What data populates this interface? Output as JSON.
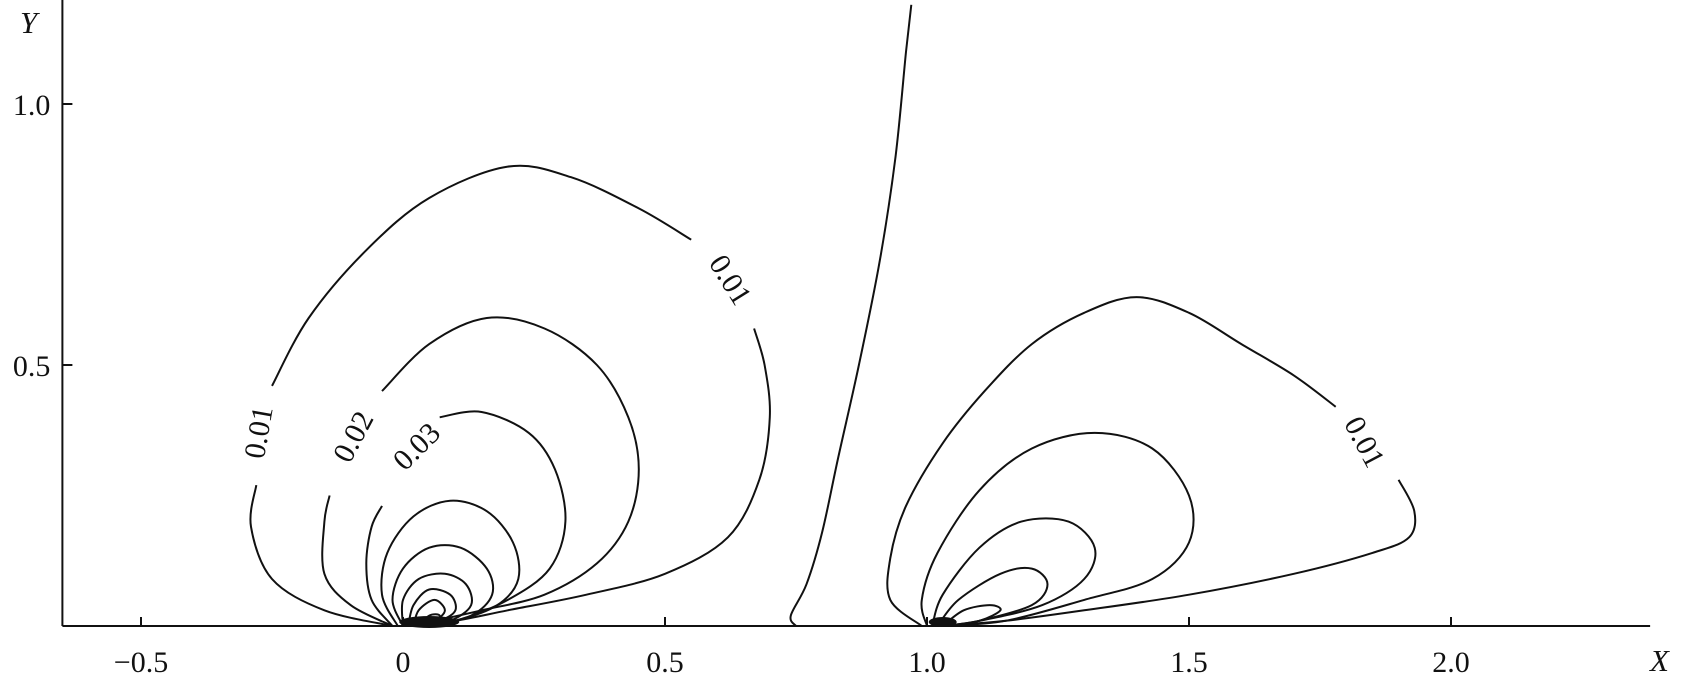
{
  "chart_data": {
    "type": "contour",
    "title": "",
    "xlabel": "X",
    "ylabel": "Y",
    "xlim": [
      -0.65,
      2.38
    ],
    "ylim": [
      0,
      1.2
    ],
    "x_ticks": [
      {
        "value": -0.5,
        "label": "−0.5"
      },
      {
        "value": 0,
        "label": "0"
      },
      {
        "value": 0.5,
        "label": "0.5"
      },
      {
        "value": 1.0,
        "label": "1.0"
      },
      {
        "value": 1.5,
        "label": "1.5"
      },
      {
        "value": 2.0,
        "label": "2.0"
      }
    ],
    "y_ticks": [
      {
        "value": 0.5,
        "label": "0.5"
      },
      {
        "value": 1.0,
        "label": "1.0"
      }
    ],
    "line_color": "#111111",
    "contour_labels": [
      {
        "text": "0.01",
        "x": 0.62,
        "y": 0.66,
        "angle": 58
      },
      {
        "text": "0.01",
        "x": -0.27,
        "y": 0.37,
        "angle": -80
      },
      {
        "text": "0.02",
        "x": -0.09,
        "y": 0.36,
        "angle": -62
      },
      {
        "text": "0.03",
        "x": 0.03,
        "y": 0.34,
        "angle": -45
      },
      {
        "text": "0.01",
        "x": 1.83,
        "y": 0.35,
        "angle": 62
      }
    ],
    "contours": [
      {
        "group": "left",
        "level": 0.01,
        "points": [
          [
            -0.02,
            0.0
          ],
          [
            -0.15,
            0.03
          ],
          [
            -0.25,
            0.09
          ],
          [
            -0.29,
            0.19
          ],
          [
            -0.28,
            0.27
          ]
        ]
      },
      {
        "group": "left",
        "level": 0.01,
        "points": [
          [
            -0.25,
            0.46
          ],
          [
            -0.18,
            0.59
          ],
          [
            -0.07,
            0.72
          ],
          [
            0.05,
            0.82
          ],
          [
            0.2,
            0.88
          ],
          [
            0.32,
            0.86
          ],
          [
            0.45,
            0.8
          ],
          [
            0.55,
            0.74
          ]
        ]
      },
      {
        "group": "left",
        "level": 0.01,
        "points": [
          [
            0.67,
            0.57
          ],
          [
            0.69,
            0.5
          ],
          [
            0.7,
            0.4
          ],
          [
            0.68,
            0.28
          ],
          [
            0.62,
            0.17
          ],
          [
            0.5,
            0.1
          ],
          [
            0.35,
            0.06
          ],
          [
            0.2,
            0.03
          ],
          [
            0.1,
            0.01
          ],
          [
            0.02,
            0.0
          ]
        ]
      },
      {
        "group": "left",
        "level": 0.02,
        "points": [
          [
            -0.02,
            0.0
          ],
          [
            -0.1,
            0.04
          ],
          [
            -0.15,
            0.1
          ],
          [
            -0.15,
            0.2
          ],
          [
            -0.14,
            0.25
          ]
        ]
      },
      {
        "group": "left",
        "level": 0.02,
        "points": [
          [
            -0.04,
            0.45
          ],
          [
            0.05,
            0.54
          ],
          [
            0.16,
            0.59
          ],
          [
            0.27,
            0.57
          ],
          [
            0.37,
            0.5
          ],
          [
            0.43,
            0.4
          ],
          [
            0.45,
            0.3
          ],
          [
            0.43,
            0.2
          ],
          [
            0.37,
            0.12
          ],
          [
            0.27,
            0.06
          ],
          [
            0.15,
            0.03
          ],
          [
            0.06,
            0.01
          ],
          [
            0.01,
            0.0
          ]
        ]
      },
      {
        "group": "left",
        "level": 0.03,
        "points": [
          [
            -0.02,
            0.0
          ],
          [
            -0.06,
            0.05
          ],
          [
            -0.07,
            0.12
          ],
          [
            -0.06,
            0.19
          ],
          [
            -0.04,
            0.23
          ]
        ]
      },
      {
        "group": "left",
        "level": 0.03,
        "points": [
          [
            0.07,
            0.4
          ],
          [
            0.15,
            0.41
          ],
          [
            0.24,
            0.37
          ],
          [
            0.29,
            0.3
          ],
          [
            0.31,
            0.2
          ],
          [
            0.28,
            0.11
          ],
          [
            0.2,
            0.05
          ],
          [
            0.1,
            0.01
          ],
          [
            0.02,
            0.0
          ]
        ]
      },
      {
        "group": "left",
        "level": 0.04,
        "points": [
          [
            -0.01,
            0.0
          ],
          [
            -0.04,
            0.06
          ],
          [
            -0.03,
            0.14
          ],
          [
            0.02,
            0.21
          ],
          [
            0.09,
            0.24
          ],
          [
            0.16,
            0.22
          ],
          [
            0.21,
            0.16
          ],
          [
            0.22,
            0.09
          ],
          [
            0.18,
            0.04
          ],
          [
            0.1,
            0.01
          ],
          [
            0.02,
            0.0
          ]
        ]
      },
      {
        "group": "left",
        "level": 0.05,
        "points": [
          [
            0.0,
            0.0
          ],
          [
            -0.02,
            0.05
          ],
          [
            0.0,
            0.11
          ],
          [
            0.05,
            0.15
          ],
          [
            0.11,
            0.15
          ],
          [
            0.16,
            0.11
          ],
          [
            0.17,
            0.06
          ],
          [
            0.13,
            0.02
          ],
          [
            0.05,
            0.0
          ]
        ]
      },
      {
        "group": "left",
        "level": 0.06,
        "points": [
          [
            0.0,
            0.0
          ],
          [
            0.0,
            0.05
          ],
          [
            0.03,
            0.09
          ],
          [
            0.08,
            0.1
          ],
          [
            0.12,
            0.08
          ],
          [
            0.13,
            0.04
          ],
          [
            0.09,
            0.01
          ],
          [
            0.03,
            0.0
          ]
        ]
      },
      {
        "group": "left",
        "level": 0.07,
        "points": [
          [
            0.01,
            0.0
          ],
          [
            0.02,
            0.04
          ],
          [
            0.05,
            0.07
          ],
          [
            0.09,
            0.06
          ],
          [
            0.1,
            0.03
          ],
          [
            0.07,
            0.01
          ],
          [
            0.02,
            0.0
          ]
        ]
      },
      {
        "group": "left",
        "level": 0.08,
        "points": [
          [
            0.02,
            0.0
          ],
          [
            0.03,
            0.03
          ],
          [
            0.06,
            0.05
          ],
          [
            0.08,
            0.03
          ],
          [
            0.06,
            0.01
          ],
          [
            0.02,
            0.0
          ]
        ]
      },
      {
        "group": "left",
        "level": 0.09,
        "points": [
          [
            0.03,
            0.0
          ],
          [
            0.05,
            0.02
          ],
          [
            0.07,
            0.02
          ],
          [
            0.06,
            0.0
          ]
        ]
      },
      {
        "group": "separator",
        "level": null,
        "points": [
          [
            0.75,
            0.0
          ],
          [
            0.74,
            0.02
          ],
          [
            0.77,
            0.08
          ],
          [
            0.8,
            0.18
          ],
          [
            0.83,
            0.32
          ],
          [
            0.87,
            0.5
          ],
          [
            0.91,
            0.7
          ],
          [
            0.94,
            0.9
          ],
          [
            0.96,
            1.1
          ],
          [
            0.97,
            1.19
          ]
        ]
      },
      {
        "group": "right",
        "level": 0.01,
        "points": [
          [
            0.99,
            0.0
          ],
          [
            0.93,
            0.05
          ],
          [
            0.93,
            0.13
          ],
          [
            0.96,
            0.23
          ],
          [
            1.03,
            0.35
          ],
          [
            1.11,
            0.45
          ],
          [
            1.2,
            0.54
          ],
          [
            1.3,
            0.6
          ],
          [
            1.4,
            0.63
          ],
          [
            1.5,
            0.6
          ],
          [
            1.6,
            0.54
          ],
          [
            1.7,
            0.48
          ],
          [
            1.78,
            0.42
          ]
        ]
      },
      {
        "group": "right",
        "level": 0.01,
        "points": [
          [
            1.9,
            0.28
          ],
          [
            1.93,
            0.22
          ],
          [
            1.92,
            0.17
          ],
          [
            1.85,
            0.14
          ],
          [
            1.7,
            0.1
          ],
          [
            1.5,
            0.06
          ],
          [
            1.3,
            0.03
          ],
          [
            1.15,
            0.01
          ],
          [
            1.03,
            0.0
          ]
        ]
      },
      {
        "group": "right",
        "level": 0.02,
        "points": [
          [
            1.0,
            0.0
          ],
          [
            0.99,
            0.05
          ],
          [
            1.02,
            0.14
          ],
          [
            1.1,
            0.26
          ],
          [
            1.2,
            0.34
          ],
          [
            1.32,
            0.37
          ],
          [
            1.43,
            0.34
          ],
          [
            1.5,
            0.25
          ],
          [
            1.5,
            0.16
          ],
          [
            1.43,
            0.09
          ],
          [
            1.3,
            0.05
          ],
          [
            1.15,
            0.01
          ],
          [
            1.03,
            0.0
          ]
        ]
      },
      {
        "group": "right",
        "level": 0.03,
        "points": [
          [
            1.01,
            0.0
          ],
          [
            1.03,
            0.06
          ],
          [
            1.1,
            0.15
          ],
          [
            1.18,
            0.2
          ],
          [
            1.27,
            0.2
          ],
          [
            1.32,
            0.15
          ],
          [
            1.3,
            0.09
          ],
          [
            1.22,
            0.04
          ],
          [
            1.1,
            0.01
          ],
          [
            1.03,
            0.0
          ]
        ]
      },
      {
        "group": "right",
        "level": 0.04,
        "points": [
          [
            1.02,
            0.0
          ],
          [
            1.06,
            0.05
          ],
          [
            1.14,
            0.1
          ],
          [
            1.2,
            0.11
          ],
          [
            1.23,
            0.08
          ],
          [
            1.2,
            0.04
          ],
          [
            1.1,
            0.01
          ],
          [
            1.03,
            0.0
          ]
        ]
      },
      {
        "group": "right",
        "level": 0.05,
        "points": [
          [
            1.03,
            0.0
          ],
          [
            1.07,
            0.03
          ],
          [
            1.12,
            0.04
          ],
          [
            1.14,
            0.03
          ],
          [
            1.1,
            0.01
          ],
          [
            1.04,
            0.0
          ]
        ]
      }
    ]
  }
}
